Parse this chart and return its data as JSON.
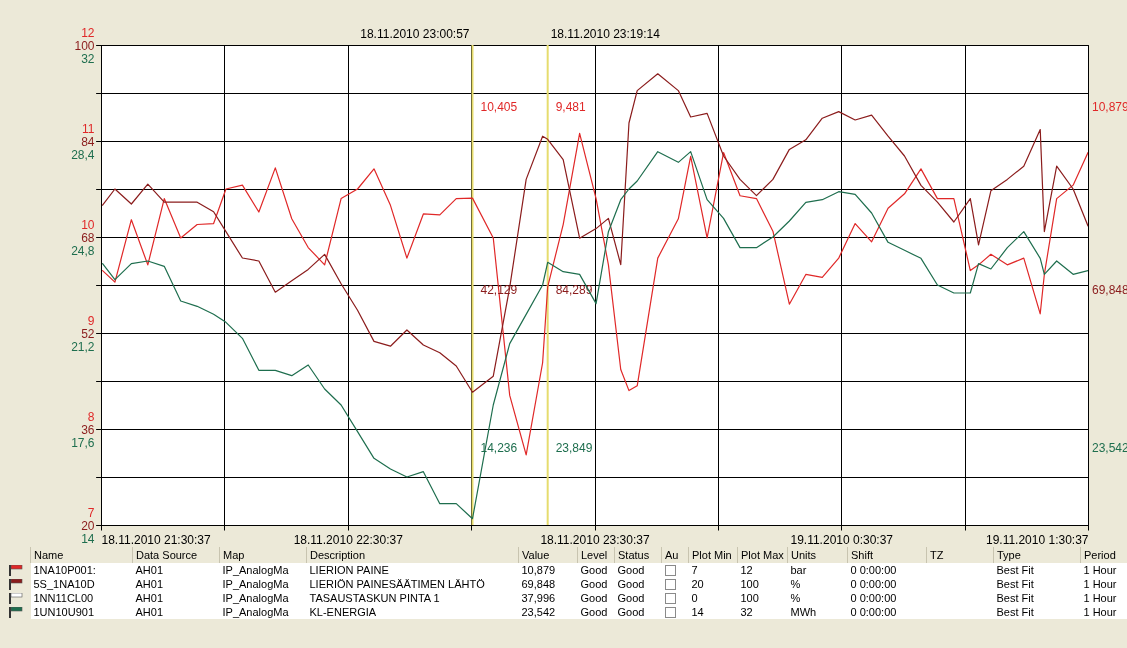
{
  "chart_data": [
    {
      "type": "line",
      "x": [
        "2010-11-18T21:31",
        "2010-11-18T21:34",
        "2010-11-18T21:38",
        "2010-11-18T21:42",
        "2010-11-18T21:46",
        "2010-11-18T21:50",
        "2010-11-18T21:54",
        "2010-11-18T21:58",
        "2010-11-18T22:01",
        "2010-11-18T22:05",
        "2010-11-18T22:09",
        "2010-11-18T22:13",
        "2010-11-18T22:17",
        "2010-11-18T22:21",
        "2010-11-18T22:25",
        "2010-11-18T22:29",
        "2010-11-18T22:33",
        "2010-11-18T22:37",
        "2010-11-18T22:41",
        "2010-11-18T22:45",
        "2010-11-18T22:49",
        "2010-11-18T22:53",
        "2010-11-18T22:57",
        "2010-11-18T23:00:57",
        "2010-11-18T23:06",
        "2010-11-18T23:10",
        "2010-11-18T23:14",
        "2010-11-18T23:18",
        "2010-11-18T23:19:14",
        "2010-11-18T23:23",
        "2010-11-18T23:27",
        "2010-11-18T23:31",
        "2010-11-18T23:34",
        "2010-11-18T23:37",
        "2010-11-18T23:39",
        "2010-11-18T23:41",
        "2010-11-18T23:46",
        "2010-11-18T23:51",
        "2010-11-18T23:54",
        "2010-11-18T23:58",
        "2010-11-19T00:02",
        "2010-11-19T00:06",
        "2010-11-19T00:10",
        "2010-11-19T00:14",
        "2010-11-19T00:18",
        "2010-11-19T00:22",
        "2010-11-19T00:26",
        "2010-11-19T00:30",
        "2010-11-19T00:34",
        "2010-11-19T00:38",
        "2010-11-19T00:42",
        "2010-11-19T00:46",
        "2010-11-19T00:50",
        "2010-11-19T00:54",
        "2010-11-19T00:58",
        "2010-11-19T01:02",
        "2010-11-19T01:04",
        "2010-11-19T01:07",
        "2010-11-19T01:11",
        "2010-11-19T01:15",
        "2010-11-19T01:19",
        "2010-11-19T01:20",
        "2010-11-19T01:23",
        "2010-11-19T01:27",
        "2010-11-19T01:30:37"
      ],
      "series": [
        {
          "color": "#e02828",
          "values": [
            9.65,
            9.53,
            10.18,
            9.71,
            10.4,
            9.99,
            10.13,
            10.14,
            10.5,
            10.54,
            10.26,
            10.72,
            10.19,
            9.89,
            9.71,
            10.4,
            10.5,
            10.71,
            10.33,
            9.78,
            10.24,
            10.23,
            10.4,
            10.405,
            9.99,
            8.35,
            7.73,
            8.69,
            9.481,
            10.13,
            11.08,
            10.4,
            9.71,
            8.62,
            8.4,
            8.45,
            9.78,
            10.19,
            10.84,
            9.99,
            10.88,
            10.43,
            10.4,
            10.06,
            9.3,
            9.61,
            9.58,
            9.78,
            10.14,
            9.95,
            10.3,
            10.45,
            10.71,
            10.4,
            10.4,
            9.65,
            9.71,
            9.82,
            9.71,
            9.78,
            9.2,
            9.61,
            10.4,
            10.54,
            10.879
          ]
        },
        {
          "color": "#8b1c1c",
          "axis": "y2",
          "values": [
            73.3,
            76.0,
            73.5,
            76.8,
            73.8,
            73.8,
            73.8,
            72.2,
            68.9,
            64.5,
            64.0,
            58.8,
            60.7,
            62.6,
            65.1,
            60.2,
            55.8,
            50.6,
            49.8,
            52.5,
            50.0,
            48.7,
            46.5,
            42.129,
            44.8,
            59.6,
            77.6,
            84.8,
            84.289,
            80.9,
            67.8,
            69.4,
            71.1,
            63.4,
            87.0,
            92.4,
            95.2,
            92.4,
            88.0,
            88.6,
            81.5,
            77.6,
            74.9,
            77.6,
            82.6,
            84.2,
            87.8,
            88.9,
            87.5,
            88.3,
            84.8,
            81.5,
            76.6,
            73.8,
            70.5,
            74.4,
            66.7,
            75.7,
            77.6,
            79.8,
            85.9,
            68.9,
            79.8,
            76.0,
            69.848
          ]
        },
        {
          "color": "#1e6e4e",
          "axis": "y3",
          "values": [
            23.8,
            23.2,
            23.8,
            23.9,
            23.7,
            22.4,
            22.2,
            21.9,
            21.6,
            21.0,
            19.8,
            19.8,
            19.6,
            20.0,
            19.1,
            18.5,
            17.5,
            16.5,
            16.1,
            15.8,
            16.0,
            14.8,
            14.8,
            14.236,
            18.5,
            20.8,
            21.9,
            23.0,
            23.849,
            23.5,
            23.4,
            22.3,
            25.0,
            26.2,
            26.6,
            26.9,
            28.0,
            27.6,
            28.0,
            26.2,
            25.5,
            24.4,
            24.4,
            24.8,
            25.4,
            26.1,
            26.2,
            26.5,
            26.4,
            25.7,
            24.6,
            24.3,
            24.0,
            23.0,
            22.7,
            22.7,
            23.8,
            23.6,
            24.4,
            25.0,
            24.0,
            23.4,
            23.9,
            23.4,
            23.542
          ]
        }
      ],
      "annotations": [
        "10,405",
        "9,481",
        "42,129",
        "84,289",
        "14,236",
        "23,849",
        "10,879",
        "69,848",
        "23,542"
      ],
      "xlim": [
        "2010-11-18T21:30:37",
        "2010-11-19T01:30:37"
      ],
      "xticks": [
        {
          "value": "2010-11-18T21:30:37",
          "label": "18.11.2010 21:30:37"
        },
        {
          "value": "2010-11-18T22:00:37",
          "label": null
        },
        {
          "value": "2010-11-18T22:30:37",
          "label": "18.11.2010 22:30:37"
        },
        {
          "value": "2010-11-18T23:00:37",
          "label": null
        },
        {
          "value": "2010-11-18T23:30:37",
          "label": "18.11.2010 23:30:37"
        },
        {
          "value": "2010-11-19T00:00:37",
          "label": null
        },
        {
          "value": "2010-11-19T00:30:37",
          "label": "19.11.2010 0:30:37"
        },
        {
          "value": "2010-11-19T01:00:37",
          "label": null
        },
        {
          "value": "2010-11-19T01:30:37",
          "label": "19.11.2010 1:30:37"
        }
      ],
      "ylim": [
        7,
        12
      ],
      "yticks": [
        7,
        {
          "value": 7.5,
          "label": null
        },
        8,
        {
          "value": 8.5,
          "label": null
        },
        9,
        {
          "value": 9.5,
          "label": null
        },
        10,
        {
          "value": 10.5,
          "label": null
        },
        11,
        {
          "value": 11.5,
          "label": null
        },
        12
      ],
      "y2lim": [
        20,
        100
      ],
      "y2ticks": [
        20,
        {
          "value": 28,
          "label": null
        },
        36,
        {
          "value": 44,
          "label": null
        },
        52,
        {
          "value": 60,
          "label": null
        },
        68,
        {
          "value": 76,
          "label": null
        },
        84,
        {
          "value": 92,
          "label": null
        },
        100
      ],
      "y3lim": [
        14,
        32
      ],
      "y3ticks": [
        14,
        {
          "value": 15.8,
          "label": null
        },
        {
          "value": 17.6,
          "label": "17,6"
        },
        {
          "value": 19.4,
          "label": null
        },
        {
          "value": 21.2,
          "label": "21,2"
        },
        {
          "value": 23,
          "label": null
        },
        {
          "value": 24.8,
          "label": "24,8"
        },
        {
          "value": 26.6,
          "label": null
        },
        {
          "value": 28.4,
          "label": "28,4"
        },
        {
          "value": 30.2,
          "label": null
        },
        32
      ],
      "grid": true,
      "ref_lines": [
        {
          "axis": "x",
          "value": "2010-11-18T23:00:57",
          "label": "18.11.2010 23:00:57",
          "color": "#e6dc6e"
        },
        {
          "axis": "x",
          "value": "2010-11-18T23:19:14",
          "label": "18.11.2010 23:19:14",
          "color": "#e6dc6e"
        }
      ]
    },
    {
      "type": "other",
      "categories": [
        "Name",
        "Data Source",
        "Map",
        "Description",
        "Value",
        "Level",
        "Status",
        "Au",
        "Plot Min",
        "Plot Max",
        "Units",
        "Shift",
        "TZ",
        "Type",
        "Period"
      ],
      "annotations": [
        "1NA10P001:",
        "AH01",
        "IP_AnalogMa",
        "LIERION PAINE",
        "10,879",
        "Good",
        "Good",
        null,
        "7",
        "12",
        "bar",
        "0 0:00:00",
        null,
        "Best Fit",
        "1 Hour",
        "5S_1NA10D",
        "AH01",
        "IP_AnalogMa",
        "LIERIÖN PAINESÄÄTIMEN LÄHTÖ",
        "69,848",
        "Good",
        "Good",
        null,
        "20",
        "100",
        "%",
        "0 0:00:00",
        null,
        "Best Fit",
        "1 Hour",
        "1NN11CL00",
        "AH01",
        "IP_AnalogMa",
        "TASAUSTASKUN PINTA 1",
        "37,996",
        "Good",
        "Good",
        null,
        "0",
        "100",
        "%",
        "0 0:00:00",
        null,
        "Best Fit",
        "1 Hour",
        "1UN10U901",
        "AH01",
        "IP_AnalogMa",
        "KL-ENERGIA",
        "23,542",
        "Good",
        "Good",
        null,
        "14",
        "32",
        "MWh",
        "0 0:00:00",
        null,
        "Best Fit",
        "1 Hour"
      ]
    }
  ]
}
